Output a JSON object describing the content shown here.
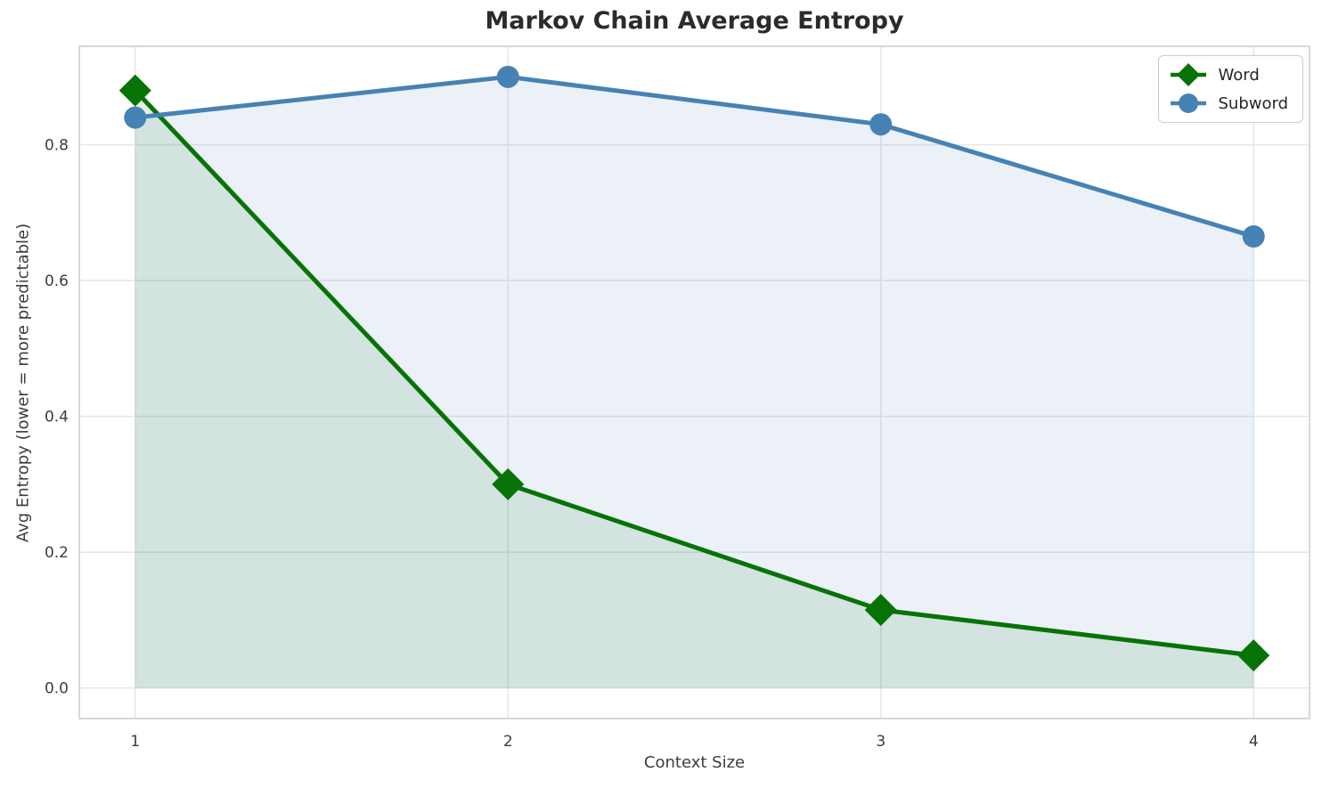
{
  "chart_data": {
    "type": "line",
    "title": "Markov Chain Average Entropy",
    "xlabel": "Context Size",
    "ylabel": "Avg Entropy (lower = more predictable)",
    "x": [
      1,
      2,
      3,
      4
    ],
    "xtick_labels": [
      "1",
      "2",
      "3",
      "4"
    ],
    "yticks": [
      0.0,
      0.2,
      0.4,
      0.6,
      0.8
    ],
    "ytick_labels": [
      "0.0",
      "0.2",
      "0.4",
      "0.6",
      "0.8"
    ],
    "xlim": [
      0.85,
      4.15
    ],
    "ylim": [
      -0.045,
      0.945
    ],
    "grid": true,
    "legend_position": "upper right",
    "fill_baseline": 0.0,
    "series": [
      {
        "name": "Word",
        "marker": "diamond",
        "color": "#077307",
        "fill_opacity": 0.11,
        "values": [
          0.88,
          0.3,
          0.115,
          0.048
        ]
      },
      {
        "name": "Subword",
        "marker": "circle",
        "color": "#4682B4",
        "fill_opacity": 0.11,
        "values": [
          0.84,
          0.9,
          0.83,
          0.665
        ]
      }
    ]
  },
  "style": {
    "grid_color": "#e7e7e7",
    "spine_color": "#cfcfcf",
    "tick_color": "#3d3d3d",
    "background": "#ffffff"
  }
}
